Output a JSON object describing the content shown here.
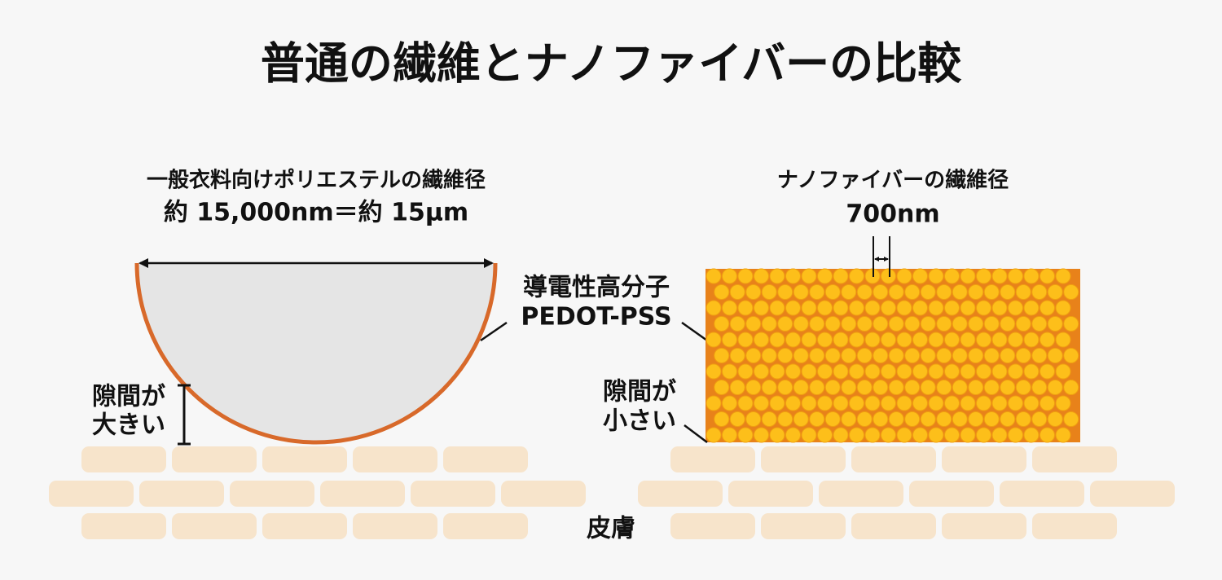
{
  "title": "普通の繊維とナノファイバーの比較",
  "left": {
    "diameter_label": "一般衣料向けポリエステルの繊維径",
    "diameter_value": "約 15,000nm＝約 15μm",
    "gap_line1": "隙間が",
    "gap_line2": "大きい"
  },
  "coating": {
    "line1": "導電性高分子",
    "line2": "PEDOT-PSS"
  },
  "right": {
    "diameter_label": "ナノファイバーの繊維径",
    "diameter_value": "700nm",
    "gap_line1": "隙間が",
    "gap_line2": "小さい"
  },
  "skin": "皮膚"
}
